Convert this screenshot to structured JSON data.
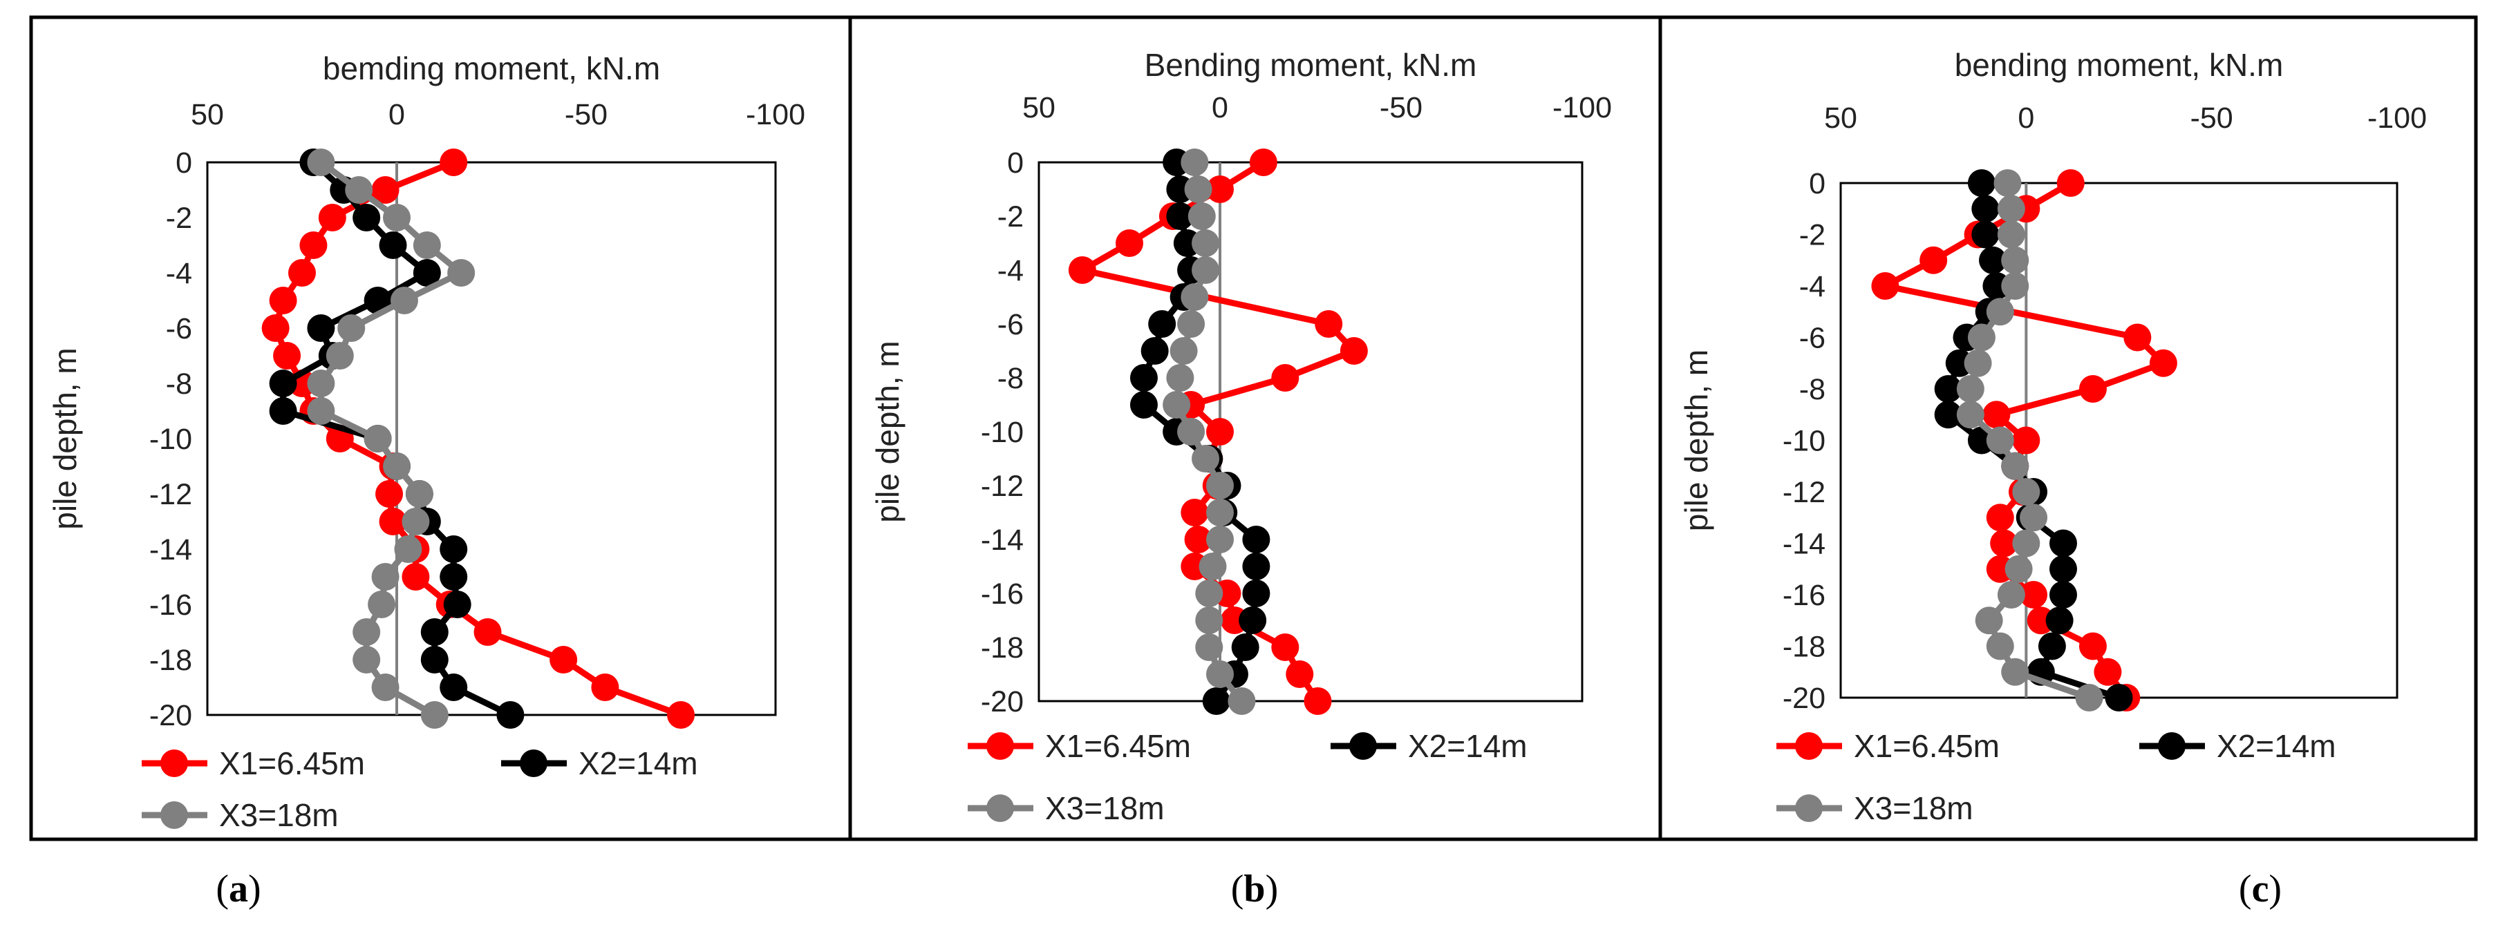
{
  "figure": {
    "colors": {
      "x1": "#ff0000",
      "x2": "#000000",
      "x3": "#808080"
    }
  },
  "chart_data": [
    {
      "type": "line",
      "panel": "a",
      "caption_open": "(",
      "caption_letter": "a",
      "caption_close": ")",
      "title": "bemding moment, kN.m",
      "xlabel": "bemding moment, kN.m",
      "ylabel": "pile depth, m",
      "xlim": [
        50,
        -100
      ],
      "ylim": [
        0,
        -20
      ],
      "x_ticks": [
        "50",
        "0",
        "-50",
        "-100"
      ],
      "x_tick_values": [
        50,
        0,
        -50,
        -100
      ],
      "y_ticks": [
        "0",
        "-2",
        "-4",
        "-6",
        "-8",
        "-10",
        "-12",
        "-14",
        "-16",
        "-18",
        "-20"
      ],
      "y_tick_values": [
        0,
        -2,
        -4,
        -6,
        -8,
        -10,
        -12,
        -14,
        -16,
        -18,
        -20
      ],
      "legend": [
        "X1=6.45m",
        "X2=14m",
        "X3=18m"
      ],
      "series": [
        {
          "name": "X1=6.45m",
          "depth": [
            0,
            -1,
            -2,
            -3,
            -4,
            -5,
            -6,
            -7,
            -8,
            -9,
            -10,
            -11,
            -12,
            -13,
            -14,
            -15,
            -16,
            -17,
            -18,
            -19,
            -20
          ],
          "moment": [
            -15,
            3,
            17,
            22,
            25,
            30,
            32,
            29,
            25,
            22,
            15,
            1,
            2,
            1,
            -5,
            -5,
            -14,
            -24,
            -44,
            -55,
            -75
          ]
        },
        {
          "name": "X2=14m",
          "depth": [
            0,
            -1,
            -2,
            -3,
            -4,
            -5,
            -6,
            -7,
            -8,
            -9,
            -10,
            -11,
            -12,
            -13,
            -14,
            -15,
            -16,
            -17,
            -18,
            -19,
            -20
          ],
          "moment": [
            22,
            14,
            8,
            1,
            -8,
            5,
            20,
            17,
            30,
            30,
            5,
            0,
            -6,
            -8,
            -15,
            -15,
            -16,
            -10,
            -10,
            -15,
            -30
          ]
        },
        {
          "name": "X3=18m",
          "depth": [
            0,
            -1,
            -2,
            -3,
            -4,
            -5,
            -6,
            -7,
            -8,
            -9,
            -10,
            -11,
            -12,
            -13,
            -14,
            -15,
            -16,
            -17,
            -18,
            -19,
            -20
          ],
          "moment": [
            20,
            10,
            0,
            -8,
            -17,
            -2,
            12,
            15,
            20,
            20,
            5,
            0,
            -6,
            -5,
            -3,
            3,
            4,
            8,
            8,
            3,
            -10
          ]
        }
      ]
    },
    {
      "type": "line",
      "panel": "b",
      "caption_open": "(",
      "caption_letter": "b",
      "caption_close": ")",
      "title": "Bending moment, kN.m",
      "xlabel": "Bending moment, kN.m",
      "ylabel": "pile depth, m",
      "xlim": [
        50,
        -100
      ],
      "ylim": [
        0,
        -20
      ],
      "x_ticks": [
        "50",
        "0",
        "-50",
        "-100"
      ],
      "x_tick_values": [
        50,
        0,
        -50,
        -100
      ],
      "y_ticks": [
        "0",
        "-2",
        "-4",
        "-6",
        "-8",
        "-10",
        "-12",
        "-14",
        "-16",
        "-18",
        "-20"
      ],
      "y_tick_values": [
        0,
        -2,
        -4,
        -6,
        -8,
        -10,
        -12,
        -14,
        -16,
        -18,
        -20
      ],
      "legend": [
        "X1=6.45m",
        "X2=14m",
        "X3=18m"
      ],
      "series": [
        {
          "name": "X1=6.45m",
          "depth": [
            0,
            -1,
            -2,
            -3,
            -4,
            -6,
            -7,
            -8,
            -9,
            -10,
            -11,
            -12,
            -13,
            -14,
            -15,
            -16,
            -17,
            -18,
            -19,
            -20
          ],
          "moment": [
            -12,
            0,
            13,
            25,
            38,
            -30,
            -37,
            -18,
            8,
            0,
            3,
            1,
            7,
            6,
            7,
            -2,
            -4,
            -18,
            -22,
            -27
          ]
        },
        {
          "name": "X2=14m",
          "depth": [
            0,
            -1,
            -2,
            -3,
            -4,
            -5,
            -6,
            -7,
            -8,
            -9,
            -10,
            -11,
            -12,
            -13,
            -14,
            -15,
            -16,
            -17,
            -18,
            -19,
            -20
          ],
          "moment": [
            12,
            11,
            11,
            9,
            8,
            10,
            16,
            18,
            21,
            21,
            12,
            3,
            -2,
            -1,
            -10,
            -10,
            -10,
            -9,
            -7,
            -4,
            1
          ]
        },
        {
          "name": "X3=18m",
          "depth": [
            0,
            -1,
            -2,
            -3,
            -4,
            -5,
            -6,
            -7,
            -8,
            -9,
            -10,
            -11,
            -12,
            -13,
            -14,
            -15,
            -16,
            -17,
            -18,
            -19,
            -20
          ],
          "moment": [
            7,
            6,
            5,
            4,
            4,
            7,
            8,
            10,
            11,
            12,
            8,
            4,
            0,
            0,
            0,
            2,
            3,
            3,
            3,
            0,
            -6
          ]
        }
      ]
    },
    {
      "type": "line",
      "panel": "c",
      "caption_open": "(",
      "caption_letter": "c",
      "caption_close": ")",
      "title": "bending moment, kN.m",
      "xlabel": "bending moment, kN.m",
      "ylabel": "pile depth, m",
      "xlim": [
        50,
        -100
      ],
      "ylim": [
        0,
        -20
      ],
      "x_ticks": [
        "50",
        "0",
        "-50",
        "-100"
      ],
      "x_tick_values": [
        50,
        0,
        -50,
        -100
      ],
      "y_ticks": [
        "0",
        "-2",
        "-4",
        "-6",
        "-8",
        "-10",
        "-12",
        "-14",
        "-16",
        "-18",
        "-20"
      ],
      "y_tick_values": [
        0,
        -2,
        -4,
        -6,
        -8,
        -10,
        -12,
        -14,
        -16,
        -18,
        -20
      ],
      "legend": [
        "X1=6.45m",
        "X2=14m",
        "X3=18m"
      ],
      "series": [
        {
          "name": "X1=6.45m",
          "depth": [
            0,
            -1,
            -2,
            -3,
            -4,
            -6,
            -7,
            -8,
            -9,
            -10,
            -11,
            -12,
            -13,
            -14,
            -15,
            -16,
            -17,
            -18,
            -19,
            -20
          ],
          "moment": [
            -12,
            0,
            13,
            25,
            38,
            -30,
            -37,
            -18,
            8,
            0,
            3,
            1,
            7,
            6,
            7,
            -2,
            -4,
            -18,
            -22,
            -27
          ]
        },
        {
          "name": "X2=14m",
          "depth": [
            0,
            -1,
            -2,
            -3,
            -4,
            -5,
            -6,
            -7,
            -8,
            -9,
            -10,
            -11,
            -12,
            -13,
            -14,
            -15,
            -16,
            -17,
            -18,
            -19,
            -20
          ],
          "moment": [
            12,
            11,
            11,
            9,
            8,
            10,
            16,
            18,
            21,
            21,
            12,
            3,
            -2,
            -1,
            -10,
            -10,
            -10,
            -9,
            -7,
            -4,
            -25
          ]
        },
        {
          "name": "X3=18m",
          "depth": [
            0,
            -1,
            -2,
            -3,
            -4,
            -5,
            -6,
            -7,
            -8,
            -9,
            -10,
            -11,
            -12,
            -13,
            -14,
            -15,
            -16,
            -17,
            -18,
            -19,
            -20
          ],
          "moment": [
            5,
            4,
            4,
            3,
            3,
            7,
            12,
            13,
            15,
            15,
            7,
            3,
            0,
            -2,
            0,
            2,
            4,
            10,
            7,
            3,
            -17
          ]
        }
      ]
    }
  ]
}
